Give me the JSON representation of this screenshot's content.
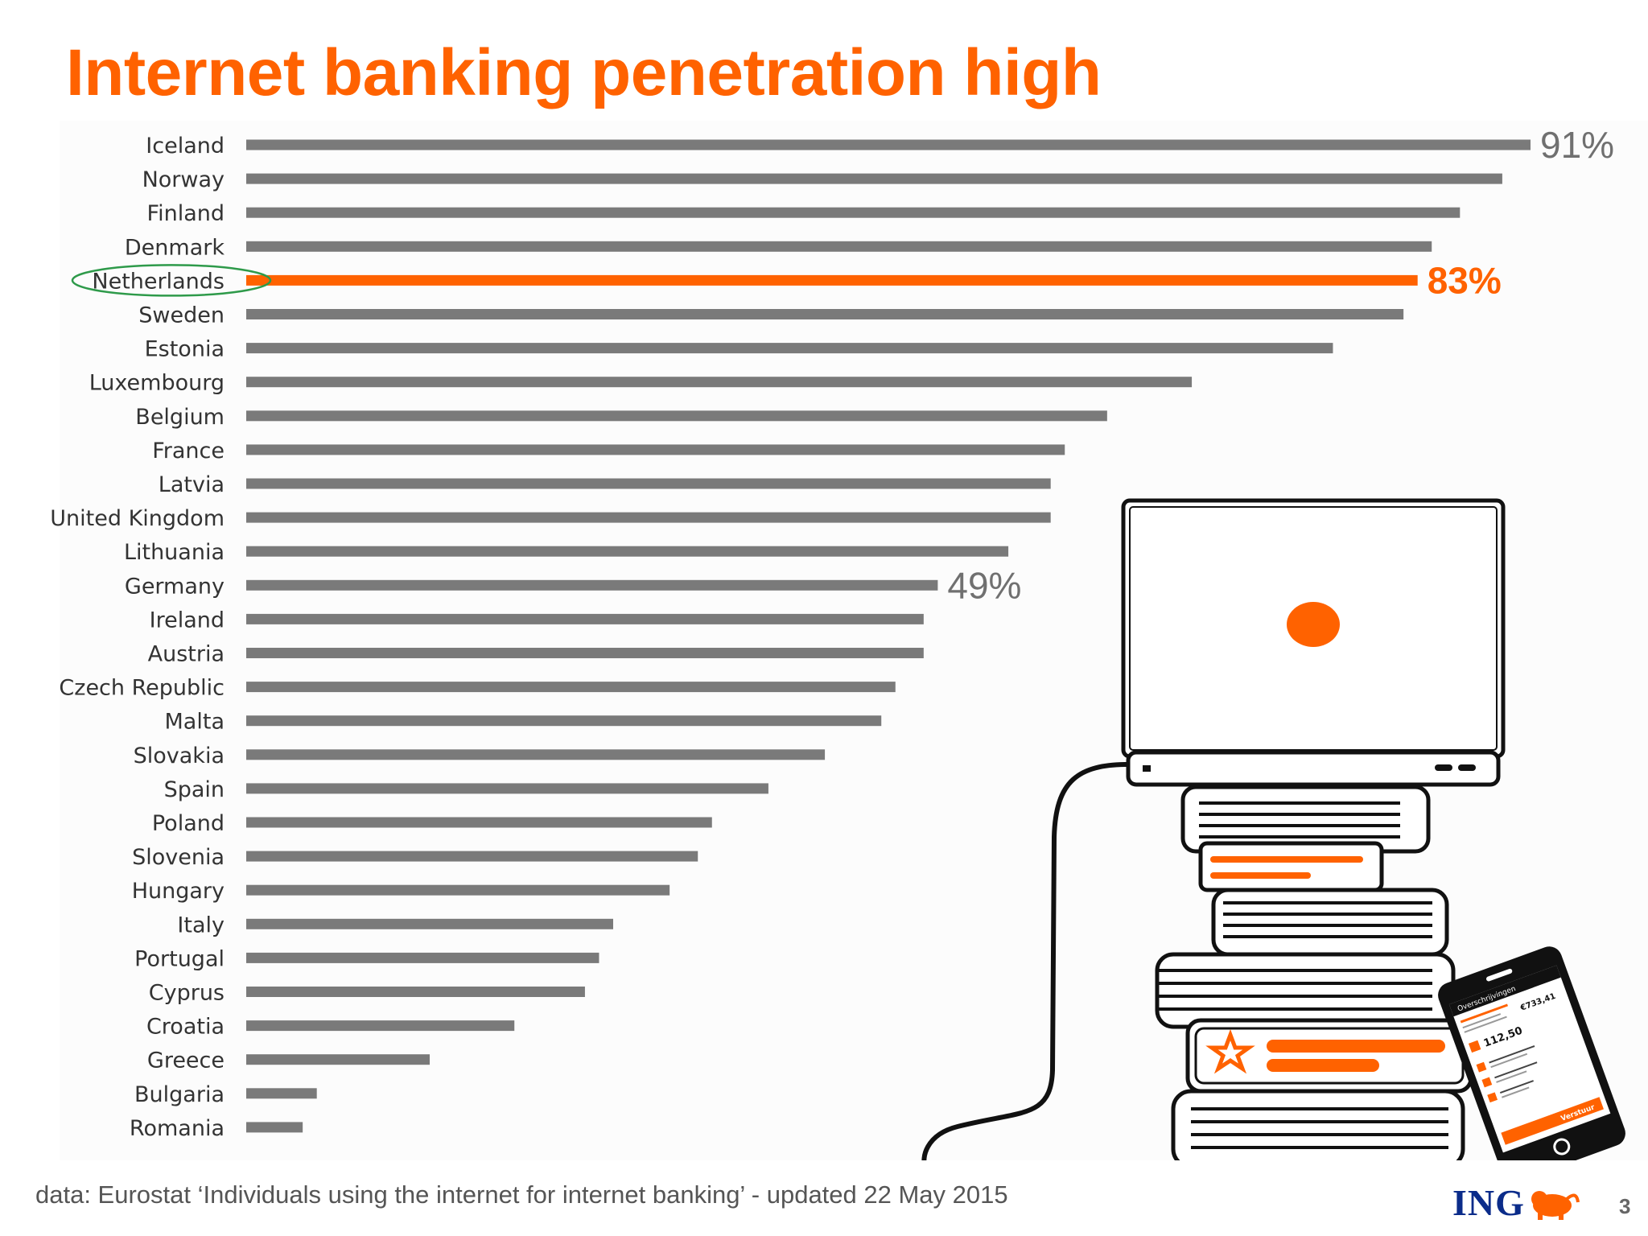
{
  "title": "Internet banking penetration high",
  "source_note": "data: Eurostat ‘Individuals using the internet for internet banking’ - updated 22 May 2015",
  "logo": {
    "text": "ING",
    "icon": "lion-icon"
  },
  "page_number": "3",
  "colors": {
    "accent": "#ff6200",
    "bar": "#7a7a7a",
    "highlight_ring": "#2e9a4a"
  },
  "phone_screen": {
    "header": "Overschrijvingen",
    "balance": "€733,41",
    "amount": "112,50",
    "button": "Verstuur"
  },
  "chart_data": {
    "type": "bar",
    "orientation": "horizontal",
    "categories": [
      "Iceland",
      "Norway",
      "Finland",
      "Denmark",
      "Netherlands",
      "Sweden",
      "Estonia",
      "Luxembourg",
      "Belgium",
      "France",
      "Latvia",
      "United Kingdom",
      "Lithuania",
      "Germany",
      "Ireland",
      "Austria",
      "Czech Republic",
      "Malta",
      "Slovakia",
      "Spain",
      "Poland",
      "Slovenia",
      "Hungary",
      "Italy",
      "Portugal",
      "Cyprus",
      "Croatia",
      "Greece",
      "Bulgaria",
      "Romania"
    ],
    "values": [
      91,
      89,
      86,
      84,
      83,
      82,
      77,
      67,
      61,
      58,
      57,
      57,
      54,
      49,
      48,
      48,
      46,
      45,
      41,
      37,
      33,
      32,
      30,
      26,
      25,
      24,
      19,
      13,
      5,
      4
    ],
    "highlight": "Netherlands",
    "value_labels": [
      {
        "category": "Iceland",
        "text": "91%"
      },
      {
        "category": "Netherlands",
        "text": "83%"
      },
      {
        "category": "Germany",
        "text": "49%"
      }
    ],
    "xlim": [
      0,
      91
    ],
    "grid": false,
    "legend": "none"
  }
}
